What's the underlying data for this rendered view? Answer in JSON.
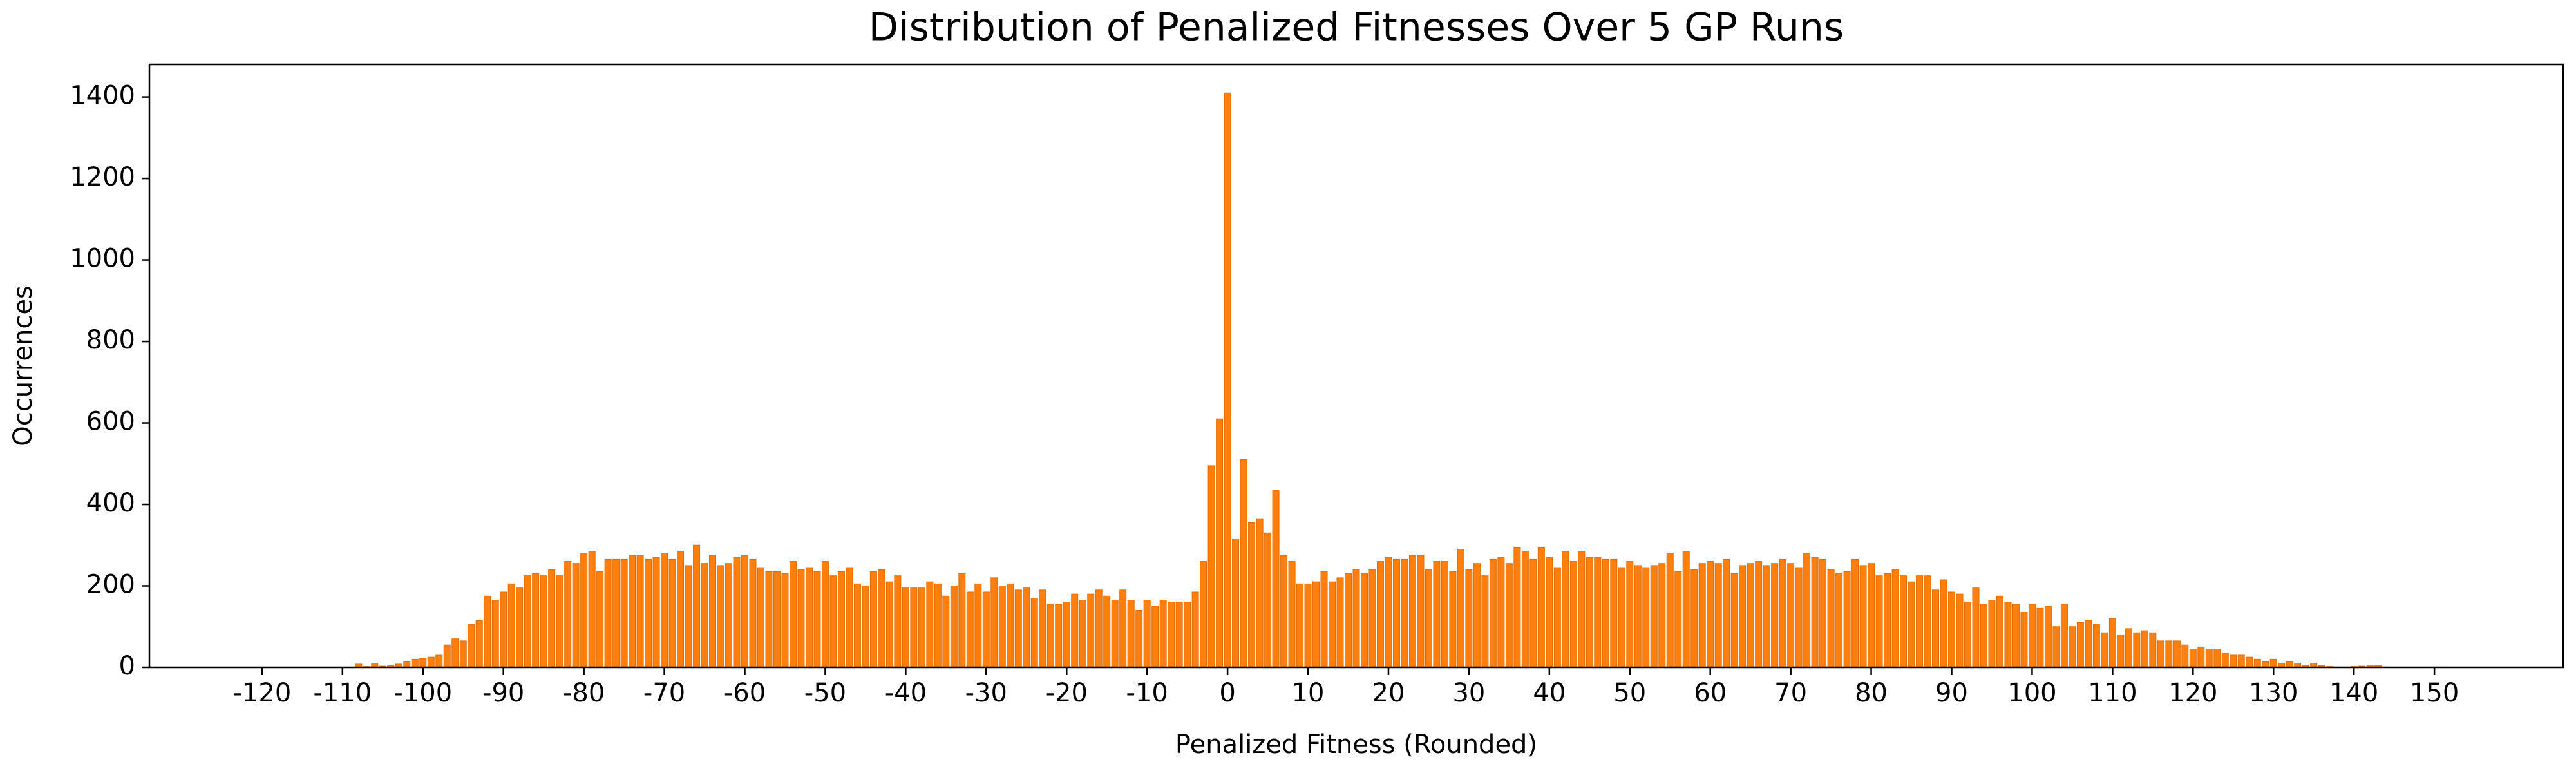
{
  "chart_data": {
    "type": "bar",
    "title": "Distribution of Penalized Fitnesses Over 5 GP Runs",
    "x_label": "Penalized Fitness (Rounded)",
    "y_label": "Occurrences",
    "color": "#ff7f0e",
    "x": [
      -108,
      -107,
      -106,
      -105,
      -104,
      -103,
      -102,
      -101,
      -100,
      -99,
      -98,
      -97,
      -96,
      -95,
      -94,
      -93,
      -92,
      -91,
      -90,
      -89,
      -88,
      -87,
      -86,
      -85,
      -84,
      -83,
      -82,
      -81,
      -80,
      -79,
      -78,
      -77,
      -76,
      -75,
      -74,
      -73,
      -72,
      -71,
      -70,
      -69,
      -68,
      -67,
      -66,
      -65,
      -64,
      -63,
      -62,
      -61,
      -60,
      -59,
      -58,
      -57,
      -56,
      -55,
      -54,
      -53,
      -52,
      -51,
      -50,
      -49,
      -48,
      -47,
      -46,
      -45,
      -44,
      -43,
      -42,
      -41,
      -40,
      -39,
      -38,
      -37,
      -36,
      -35,
      -34,
      -33,
      -32,
      -31,
      -30,
      -29,
      -28,
      -27,
      -26,
      -25,
      -24,
      -23,
      -22,
      -21,
      -20,
      -19,
      -18,
      -17,
      -16,
      -15,
      -14,
      -13,
      -12,
      -11,
      -10,
      -9,
      -8,
      -7,
      -6,
      -5,
      -4,
      -3,
      -2,
      -1,
      0,
      1,
      2,
      3,
      4,
      5,
      6,
      7,
      8,
      9,
      10,
      11,
      12,
      13,
      14,
      15,
      16,
      17,
      18,
      19,
      20,
      21,
      22,
      23,
      24,
      25,
      26,
      27,
      28,
      29,
      30,
      31,
      32,
      33,
      34,
      35,
      36,
      37,
      38,
      39,
      40,
      41,
      42,
      43,
      44,
      45,
      46,
      47,
      48,
      49,
      50,
      51,
      52,
      53,
      54,
      55,
      56,
      57,
      58,
      59,
      60,
      61,
      62,
      63,
      64,
      65,
      66,
      67,
      68,
      69,
      70,
      71,
      72,
      73,
      74,
      75,
      76,
      77,
      78,
      79,
      80,
      81,
      82,
      83,
      84,
      85,
      86,
      87,
      88,
      89,
      90,
      91,
      92,
      93,
      94,
      95,
      96,
      97,
      98,
      99,
      100,
      101,
      102,
      103,
      104,
      105,
      106,
      107,
      108,
      109,
      110,
      111,
      112,
      113,
      114,
      115,
      116,
      117,
      118,
      119,
      120,
      121,
      122,
      123,
      124,
      125,
      126,
      127,
      128,
      129,
      130,
      131,
      132,
      133,
      134,
      135,
      136,
      137,
      138,
      139,
      140,
      141,
      142,
      143,
      144,
      145,
      146,
      147,
      148,
      149,
      150,
      151
    ],
    "values": [
      8,
      2,
      10,
      3,
      5,
      8,
      15,
      20,
      22,
      25,
      30,
      55,
      70,
      65,
      105,
      115,
      175,
      165,
      185,
      205,
      195,
      225,
      230,
      225,
      240,
      225,
      260,
      255,
      280,
      285,
      235,
      265,
      265,
      265,
      275,
      275,
      265,
      270,
      280,
      265,
      285,
      250,
      300,
      255,
      275,
      250,
      255,
      270,
      275,
      265,
      245,
      235,
      235,
      230,
      260,
      240,
      245,
      235,
      260,
      225,
      235,
      245,
      205,
      200,
      235,
      240,
      210,
      225,
      195,
      195,
      195,
      210,
      205,
      175,
      200,
      230,
      185,
      205,
      185,
      220,
      200,
      205,
      190,
      195,
      170,
      190,
      155,
      155,
      160,
      180,
      165,
      180,
      190,
      175,
      165,
      190,
      165,
      140,
      165,
      150,
      165,
      160,
      160,
      160,
      185,
      260,
      495,
      610,
      1410,
      315,
      510,
      355,
      365,
      330,
      435,
      275,
      260,
      205,
      205,
      210,
      235,
      210,
      220,
      230,
      240,
      230,
      240,
      260,
      270,
      265,
      265,
      275,
      275,
      240,
      260,
      260,
      235,
      290,
      240,
      255,
      225,
      265,
      270,
      255,
      295,
      285,
      265,
      295,
      270,
      245,
      285,
      260,
      285,
      270,
      270,
      265,
      265,
      245,
      260,
      250,
      245,
      250,
      255,
      280,
      235,
      285,
      240,
      255,
      260,
      255,
      265,
      230,
      250,
      255,
      260,
      250,
      255,
      265,
      255,
      245,
      280,
      270,
      265,
      240,
      230,
      235,
      265,
      250,
      255,
      225,
      230,
      240,
      225,
      210,
      225,
      225,
      190,
      215,
      185,
      180,
      160,
      195,
      155,
      165,
      175,
      160,
      155,
      135,
      155,
      145,
      150,
      100,
      155,
      100,
      110,
      115,
      105,
      85,
      120,
      80,
      95,
      85,
      90,
      85,
      65,
      65,
      65,
      55,
      45,
      50,
      45,
      45,
      35,
      30,
      30,
      25,
      20,
      15,
      20,
      10,
      15,
      10,
      5,
      10,
      5,
      2,
      1,
      1,
      2,
      3,
      5,
      5,
      1,
      0,
      0,
      0,
      0,
      0,
      1,
      1
    ],
    "xlim": [
      -134,
      166
    ],
    "xticks": [
      -120,
      -110,
      -100,
      -90,
      -80,
      -70,
      -60,
      -50,
      -40,
      -30,
      -20,
      -10,
      0,
      10,
      20,
      30,
      40,
      50,
      60,
      70,
      80,
      90,
      100,
      110,
      120,
      130,
      140,
      150
    ],
    "ylim": [
      0,
      1480
    ],
    "yticks": [
      0,
      200,
      400,
      600,
      800,
      1000,
      1200,
      1400
    ]
  }
}
